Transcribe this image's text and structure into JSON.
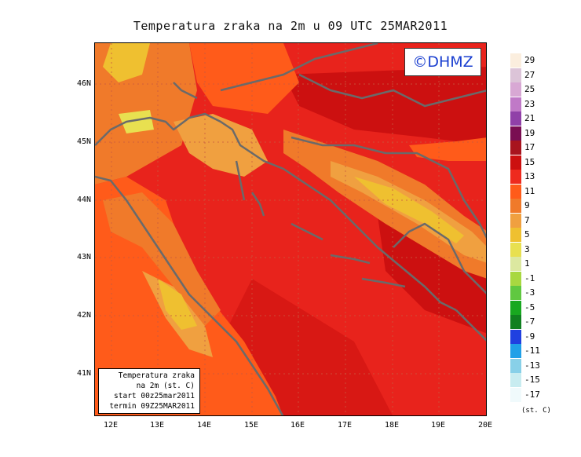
{
  "title": "Temperatura zraka na 2m u 09 UTC 25MAR2011",
  "watermark": "©DHMZ",
  "info_box": {
    "line1": "Temperatura zraka",
    "line2": "na 2m (st. C)",
    "line3": "start 00z25mar2011",
    "line4": "termin 09Z25MAR2011"
  },
  "lat_labels": [
    "46N",
    "45N",
    "44N",
    "43N",
    "42N",
    "41N"
  ],
  "lon_labels": [
    "12E",
    "13E",
    "14E",
    "15E",
    "16E",
    "17E",
    "18E",
    "19E",
    "20E"
  ],
  "legend": {
    "unit": "(st. C)",
    "labels": [
      "29",
      "27",
      "25",
      "23",
      "21",
      "19",
      "17",
      "15",
      "13",
      "11",
      "9",
      "7",
      "5",
      "3",
      "1",
      "-1",
      "-3",
      "-5",
      "-7",
      "-9",
      "-11",
      "-13",
      "-15",
      "-17"
    ],
    "colors": [
      "#fbeede",
      "#dcc4d8",
      "#d8a8d4",
      "#c079c7",
      "#9040a8",
      "#7a0e52",
      "#a8141e",
      "#cc1010",
      "#ee2a1e",
      "#ff5b1a",
      "#f07a2a",
      "#f0a040",
      "#efc030",
      "#e8e050",
      "#dce8a0",
      "#a8d840",
      "#60c840",
      "#18a820",
      "#108020",
      "#2040e0",
      "#20a0e8",
      "#88d0e8",
      "#c8ecf0",
      "#f0fafc"
    ]
  }
}
